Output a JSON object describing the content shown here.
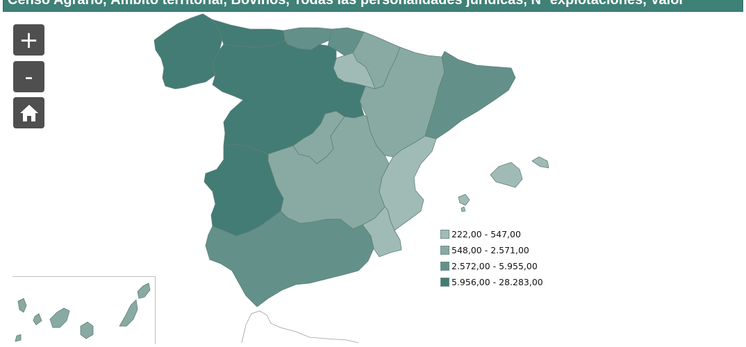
{
  "title": "Censo Agrario, Ámbito territorial, Bovinos, Todas las personalidades jurídicas, Nº explotaciones, Valor",
  "controls": {
    "zoom_in_label": "+",
    "zoom_out_label": "-",
    "home_icon": "home-icon"
  },
  "palette": {
    "c1": "#a0bbb5",
    "c2": "#88aaa2",
    "c3": "#63918a",
    "c4": "#437c74",
    "border": "#5d7f79"
  },
  "legend": [
    {
      "label": "222,00 - 547,00",
      "color": "#a0bbb5"
    },
    {
      "label": "548,00 - 2.571,00",
      "color": "#88aaa2"
    },
    {
      "label": "2.572,00 - 5.955,00",
      "color": "#63918a"
    },
    {
      "label": "5.956,00 - 28.283,00",
      "color": "#437c74"
    }
  ],
  "regions": [
    {
      "id": "galicia",
      "class": 4
    },
    {
      "id": "asturias",
      "class": 4
    },
    {
      "id": "cantabria",
      "class": 3
    },
    {
      "id": "pais-vasco",
      "class": 3
    },
    {
      "id": "navarra",
      "class": 2
    },
    {
      "id": "la-rioja",
      "class": 1
    },
    {
      "id": "aragon",
      "class": 2
    },
    {
      "id": "cataluna",
      "class": 3
    },
    {
      "id": "castilla-y-leon",
      "class": 4
    },
    {
      "id": "madrid",
      "class": 2
    },
    {
      "id": "castilla-la-mancha",
      "class": 2
    },
    {
      "id": "comunidad-valenciana",
      "class": 1
    },
    {
      "id": "extremadura",
      "class": 4
    },
    {
      "id": "andalucia",
      "class": 3
    },
    {
      "id": "murcia",
      "class": 1
    },
    {
      "id": "illes-balears",
      "class": 1
    },
    {
      "id": "canarias",
      "class": 2
    }
  ]
}
